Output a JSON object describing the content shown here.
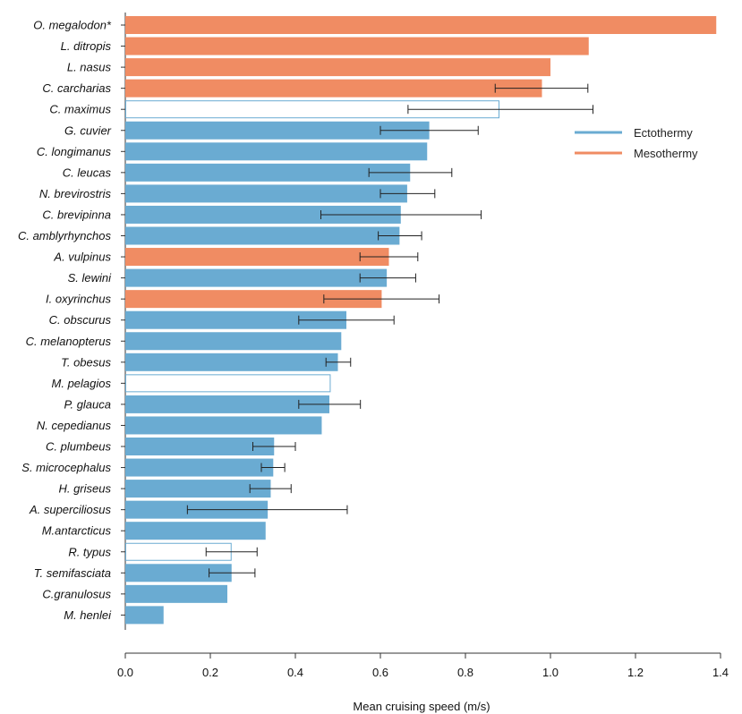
{
  "chart_data": {
    "type": "bar",
    "orientation": "horizontal",
    "title": "",
    "xlabel": "Mean cruising speed (m/s)",
    "ylabel": "",
    "xlim": [
      0,
      1.4
    ],
    "xticks": [
      "0.0",
      "0.2",
      "0.4",
      "0.6",
      "0.8",
      "1.0",
      "1.2",
      "1.4"
    ],
    "grid": false,
    "legend_position": "top-right",
    "legend": [
      {
        "name": "Ectothermy",
        "color": "#6aabd2"
      },
      {
        "name": "Mesothermy",
        "color": "#f08c63"
      }
    ],
    "colors": {
      "ectothermy": "#6aabd2",
      "mesothermy": "#f08c63",
      "open_outline": "#6aabd2",
      "error_bar": "#222222"
    },
    "categories": [
      "O. megalodon*",
      "L. ditropis",
      "L. nasus",
      "C. carcharias",
      "C. maximus",
      "G. cuvier",
      "C. longimanus",
      "C. leucas",
      "N. brevirostris",
      "C. brevipinna",
      "C. amblyrhynchos",
      "A. vulpinus",
      "S. lewini",
      "I. oxyrinchus",
      "C. obscurus",
      "C. melanopterus",
      "T. obesus",
      "M. pelagios",
      "P. glauca",
      "N. cepedianus",
      "C. plumbeus",
      "S. microcephalus",
      "H. griseus",
      "A. superciliosus",
      "M.antarcticus",
      "R. typus",
      "T. semifasciata",
      "C.granulosus",
      "M. henlei"
    ],
    "values": [
      1.39,
      1.09,
      1.0,
      0.98,
      0.88,
      0.715,
      0.71,
      0.67,
      0.663,
      0.648,
      0.645,
      0.62,
      0.615,
      0.603,
      0.52,
      0.508,
      0.5,
      0.483,
      0.48,
      0.462,
      0.35,
      0.348,
      0.342,
      0.335,
      0.33,
      0.25,
      0.25,
      0.24,
      0.09
    ],
    "groups": [
      "meso",
      "meso",
      "meso",
      "meso",
      "open",
      "ecto",
      "ecto",
      "ecto",
      "ecto",
      "ecto",
      "ecto",
      "meso",
      "ecto",
      "meso",
      "ecto",
      "ecto",
      "ecto",
      "open",
      "ecto",
      "ecto",
      "ecto",
      "ecto",
      "ecto",
      "ecto",
      "ecto",
      "open",
      "ecto",
      "ecto",
      "ecto"
    ],
    "error_low": [
      null,
      null,
      null,
      0.87,
      0.665,
      0.6,
      null,
      0.573,
      0.6,
      0.46,
      0.595,
      0.552,
      0.552,
      0.467,
      0.408,
      null,
      0.472,
      null,
      0.408,
      null,
      0.3,
      0.32,
      0.293,
      0.146,
      null,
      0.19,
      0.197,
      null,
      null
    ],
    "error_high": [
      null,
      null,
      null,
      1.088,
      1.1,
      0.83,
      null,
      0.768,
      0.728,
      0.837,
      0.697,
      0.688,
      0.683,
      0.738,
      0.632,
      null,
      0.53,
      null,
      0.553,
      null,
      0.4,
      0.375,
      0.39,
      0.522,
      null,
      0.31,
      0.305,
      null,
      null
    ]
  }
}
